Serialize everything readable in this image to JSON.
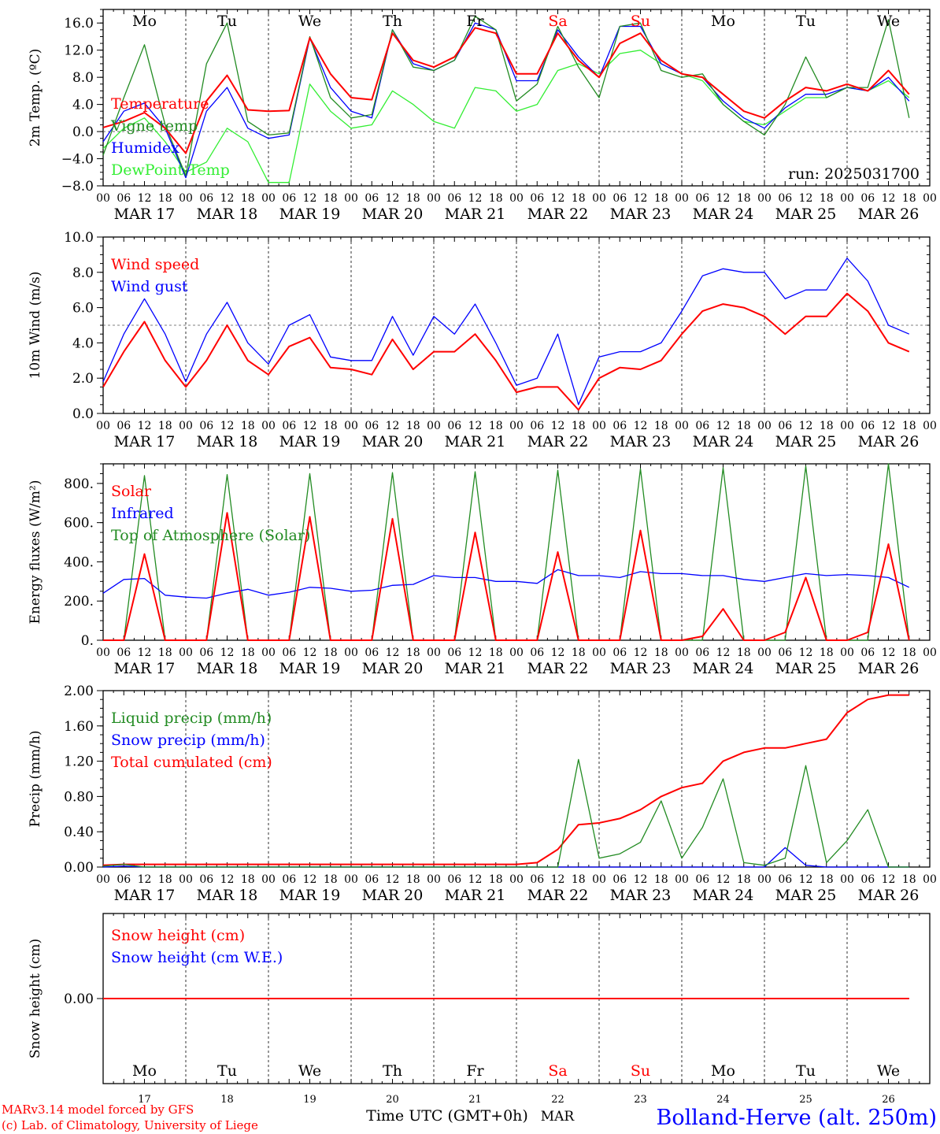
{
  "run_label": "run: 2025031700",
  "x_hour_ticks": [
    "00",
    "06",
    "12",
    "18"
  ],
  "dates": [
    "MAR 17",
    "MAR 18",
    "MAR 19",
    "MAR 20",
    "MAR 21",
    "MAR 22",
    "MAR 23",
    "MAR 24",
    "MAR 25",
    "MAR 26"
  ],
  "day_names": [
    "Mo",
    "Tu",
    "We",
    "Th",
    "Fr",
    "Sa",
    "Su",
    "Mo",
    "Tu",
    "We"
  ],
  "day_numbers": [
    "17",
    "18",
    "19",
    "20",
    "21",
    "22",
    "23",
    "24",
    "25",
    "26"
  ],
  "month_label": "MAR",
  "xlabel": "Time UTC (GMT+0h)",
  "footer_left": [
    "MARv3.14 model forced by GFS",
    "(c) Lab. of Climatology, University of Liege"
  ],
  "footer_right": "Bolland-Herve (alt. 250m)",
  "colors": {
    "red": "#ff0000",
    "green": "#228b22",
    "blue": "#0000ff",
    "lightgreen": "#33ee33",
    "axis": "#000000"
  },
  "chart_data": [
    {
      "type": "line",
      "ylabel": "2m Temp. (ºC)",
      "ylim": [
        -8,
        18
      ],
      "yticks": [
        "16.0",
        "12.0",
        "8.0",
        "4.0",
        "0.0",
        "−4.0",
        "−8.0"
      ],
      "reference_line": 0,
      "x": [
        0,
        6,
        12,
        18,
        24,
        30,
        36,
        42,
        48,
        54,
        60,
        66,
        72,
        78,
        84,
        90,
        96,
        102,
        108,
        114,
        120,
        126,
        132,
        138,
        144,
        150,
        156,
        162,
        168,
        174,
        180,
        186,
        192,
        198,
        204,
        210,
        216,
        222,
        228,
        234
      ],
      "series": [
        {
          "name": "Temperature",
          "color": "red",
          "values": [
            0.6,
            1.5,
            2.8,
            0.5,
            -3.2,
            4.5,
            8.3,
            3.2,
            3.0,
            3.1,
            13.8,
            8.5,
            5.0,
            4.7,
            14.5,
            10.5,
            9.5,
            11.0,
            15.3,
            14.5,
            8.5,
            8.5,
            14.5,
            10.5,
            8.0,
            13.0,
            14.5,
            10.5,
            8.5,
            8.0,
            5.5,
            3.0,
            2.0,
            4.5,
            6.5,
            6.0,
            7.0,
            6.0,
            9.0,
            5.5
          ]
        },
        {
          "name": "Vigne temp",
          "color": "green",
          "values": [
            -3.5,
            5.0,
            12.8,
            1.0,
            -6.5,
            10.0,
            16.0,
            1.5,
            -0.5,
            -0.2,
            14.0,
            5.0,
            2.0,
            2.5,
            15.0,
            9.5,
            9.0,
            10.5,
            17.0,
            15.0,
            4.5,
            7.0,
            15.5,
            9.5,
            5.0,
            15.5,
            16.0,
            9.0,
            8.0,
            8.5,
            4.0,
            1.5,
            -0.5,
            4.0,
            11.0,
            5.0,
            6.5,
            6.5,
            16.5,
            2.0
          ]
        },
        {
          "name": "Humidex",
          "color": "blue",
          "values": [
            -1.5,
            3.0,
            4.2,
            0.5,
            -6.8,
            3.0,
            6.5,
            0.5,
            -1.0,
            -0.5,
            13.8,
            6.5,
            3.0,
            2.0,
            15.0,
            10.0,
            9.0,
            10.5,
            16.0,
            15.0,
            7.5,
            7.5,
            15.0,
            11.0,
            8.0,
            15.5,
            15.5,
            10.0,
            8.5,
            8.0,
            4.5,
            2.0,
            0.5,
            3.5,
            5.5,
            5.5,
            6.5,
            6.0,
            8.0,
            4.5
          ]
        },
        {
          "name": "DewPoint Temp",
          "color": "lightgreen",
          "values": [
            -2.5,
            0.5,
            2.0,
            -1.5,
            -6.0,
            -4.5,
            0.5,
            -1.5,
            -7.5,
            -7.5,
            7.0,
            3.0,
            0.5,
            1.0,
            6.0,
            4.0,
            1.5,
            0.5,
            6.5,
            6.0,
            3.0,
            4.0,
            9.0,
            10.0,
            8.5,
            11.5,
            12.0,
            10.0,
            8.5,
            7.5,
            4.0,
            1.5,
            1.0,
            3.0,
            5.0,
            5.0,
            6.5,
            6.0,
            7.5,
            5.0
          ]
        }
      ]
    },
    {
      "type": "line",
      "ylabel": "10m Wind (m/s)",
      "ylim": [
        0,
        10
      ],
      "yticks": [
        "10.0",
        "8.0",
        "6.0",
        "4.0",
        "2.0",
        "0.0"
      ],
      "reference_line": 5,
      "x": [
        0,
        6,
        12,
        18,
        24,
        30,
        36,
        42,
        48,
        54,
        60,
        66,
        72,
        78,
        84,
        90,
        96,
        102,
        108,
        114,
        120,
        126,
        132,
        138,
        144,
        150,
        156,
        162,
        168,
        174,
        180,
        186,
        192,
        198,
        204,
        210,
        216,
        222,
        228,
        234
      ],
      "series": [
        {
          "name": "Wind speed",
          "color": "red",
          "values": [
            1.5,
            3.5,
            5.2,
            3.0,
            1.5,
            3.0,
            5.0,
            3.0,
            2.2,
            3.8,
            4.3,
            2.6,
            2.5,
            2.2,
            4.2,
            2.5,
            3.5,
            3.5,
            4.5,
            3.0,
            1.2,
            1.5,
            1.5,
            0.2,
            2.0,
            2.6,
            2.5,
            3.0,
            4.5,
            5.8,
            6.2,
            6.0,
            5.5,
            4.5,
            5.5,
            5.5,
            6.8,
            5.8,
            4.0,
            3.5
          ]
        },
        {
          "name": "Wind gust",
          "color": "blue",
          "values": [
            1.8,
            4.5,
            6.5,
            4.5,
            1.8,
            4.5,
            6.3,
            4.0,
            2.8,
            5.0,
            5.6,
            3.2,
            3.0,
            3.0,
            5.5,
            3.3,
            5.5,
            4.5,
            6.2,
            4.0,
            1.6,
            2.0,
            4.5,
            0.5,
            3.2,
            3.5,
            3.5,
            4.0,
            5.8,
            7.8,
            8.2,
            8.0,
            8.0,
            6.5,
            7.0,
            7.0,
            8.8,
            7.5,
            5.0,
            4.5
          ]
        }
      ]
    },
    {
      "type": "line",
      "ylabel": "Energy fluxes (W/m²)",
      "ylim": [
        0,
        900
      ],
      "yticks": [
        "800.",
        "600.",
        "400.",
        "200.",
        "0."
      ],
      "x": [
        0,
        6,
        12,
        18,
        24,
        30,
        36,
        42,
        48,
        54,
        60,
        66,
        72,
        78,
        84,
        90,
        96,
        102,
        108,
        114,
        120,
        126,
        132,
        138,
        144,
        150,
        156,
        162,
        168,
        174,
        180,
        186,
        192,
        198,
        204,
        210,
        216,
        222,
        228,
        234
      ],
      "series": [
        {
          "name": "Solar",
          "color": "red",
          "values": [
            0,
            0,
            440,
            0,
            0,
            0,
            650,
            0,
            0,
            0,
            630,
            0,
            0,
            0,
            620,
            0,
            0,
            0,
            550,
            0,
            0,
            0,
            450,
            0,
            0,
            0,
            560,
            0,
            0,
            20,
            160,
            0,
            0,
            40,
            320,
            0,
            0,
            40,
            490,
            0
          ]
        },
        {
          "name": "Infrared",
          "color": "blue",
          "values": [
            240,
            310,
            315,
            230,
            220,
            215,
            240,
            260,
            230,
            245,
            270,
            265,
            250,
            255,
            280,
            285,
            330,
            320,
            320,
            300,
            300,
            290,
            360,
            330,
            330,
            320,
            350,
            340,
            340,
            330,
            330,
            310,
            300,
            320,
            340,
            330,
            335,
            330,
            320,
            270
          ]
        },
        {
          "name": "Top of Atmosphere (Solar)",
          "color": "green",
          "values": [
            0,
            0,
            840,
            0,
            0,
            0,
            845,
            0,
            0,
            0,
            850,
            0,
            0,
            0,
            855,
            0,
            0,
            0,
            860,
            0,
            0,
            0,
            868,
            0,
            0,
            0,
            875,
            0,
            0,
            0,
            880,
            0,
            0,
            0,
            888,
            0,
            0,
            0,
            900,
            0
          ]
        }
      ]
    },
    {
      "type": "line",
      "ylabel": "Precip (mm/h)",
      "ylim": [
        0,
        2
      ],
      "yticks": [
        "2.00",
        "1.60",
        "1.20",
        "0.80",
        "0.40",
        "0.00"
      ],
      "x": [
        0,
        6,
        12,
        18,
        24,
        30,
        36,
        42,
        48,
        54,
        60,
        66,
        72,
        78,
        84,
        90,
        96,
        102,
        108,
        114,
        120,
        126,
        132,
        138,
        144,
        150,
        156,
        162,
        168,
        174,
        180,
        186,
        192,
        198,
        204,
        210,
        216,
        222,
        228,
        234
      ],
      "series": [
        {
          "name": "Liquid precip (mm/h)",
          "color": "green",
          "values": [
            0.01,
            0.03,
            0,
            0,
            0,
            0,
            0,
            0,
            0,
            0,
            0,
            0,
            0,
            0,
            0,
            0,
            0,
            0,
            0,
            0,
            0,
            0,
            0,
            1.22,
            0.1,
            0.15,
            0.28,
            0.75,
            0.1,
            0.45,
            1.0,
            0.05,
            0.02,
            0.1,
            1.15,
            0.05,
            0.3,
            0.65,
            0,
            0
          ]
        },
        {
          "name": "Snow precip (mm/h)",
          "color": "blue",
          "values": [
            0,
            0.01,
            0,
            0,
            0,
            0,
            0,
            0,
            0,
            0,
            0,
            0,
            0,
            0,
            0,
            0,
            0,
            0,
            0,
            0,
            0,
            0,
            0,
            0,
            0,
            0,
            0,
            0,
            0,
            0,
            0,
            0,
            0,
            0.22,
            0.02,
            0,
            0,
            0,
            0,
            0
          ]
        },
        {
          "name": "Total cumulated (cm)",
          "color": "red",
          "values": [
            0.02,
            0.03,
            0.03,
            0.03,
            0.03,
            0.03,
            0.03,
            0.03,
            0.03,
            0.03,
            0.03,
            0.03,
            0.03,
            0.03,
            0.03,
            0.03,
            0.03,
            0.03,
            0.03,
            0.03,
            0.03,
            0.05,
            0.2,
            0.48,
            0.5,
            0.55,
            0.65,
            0.8,
            0.9,
            0.95,
            1.2,
            1.3,
            1.35,
            1.35,
            1.4,
            1.45,
            1.75,
            1.9,
            1.95,
            1.95
          ]
        }
      ]
    },
    {
      "type": "line",
      "ylabel": "Snow height (cm)",
      "ylim": [
        -1,
        1
      ],
      "yticks": [
        "0.00"
      ],
      "x": [
        0,
        234
      ],
      "series": [
        {
          "name": "Snow height (cm)",
          "color": "red",
          "values": [
            0,
            0
          ]
        },
        {
          "name": "Snow height (cm W.E.)",
          "color": "blue",
          "values": [
            0,
            0
          ]
        }
      ]
    }
  ]
}
